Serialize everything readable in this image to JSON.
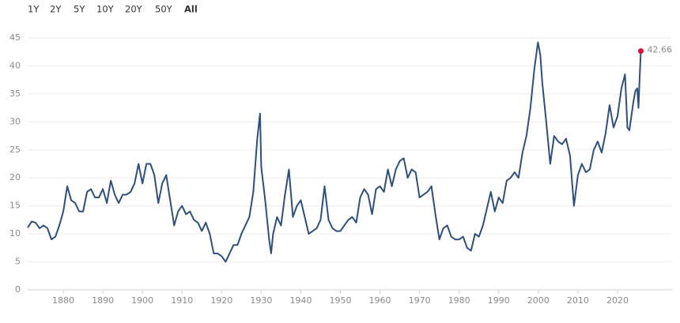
{
  "controls": {
    "ranges": [
      "1Y",
      "2Y",
      "5Y",
      "10Y",
      "20Y",
      "50Y",
      "All"
    ],
    "active": 6
  },
  "chart_data": {
    "type": "line",
    "x": [
      1871,
      1872,
      1873,
      1874,
      1875,
      1876,
      1877,
      1878,
      1879,
      1880,
      1881,
      1882,
      1883,
      1884,
      1885,
      1886,
      1887,
      1888,
      1889,
      1890,
      1891,
      1892,
      1893,
      1894,
      1895,
      1896,
      1897,
      1898,
      1899,
      1900,
      1901,
      1902,
      1903,
      1904,
      1905,
      1906,
      1907,
      1908,
      1909,
      1910,
      1911,
      1912,
      1913,
      1914,
      1915,
      1916,
      1917,
      1918,
      1919,
      1920,
      1921,
      1922,
      1923,
      1924,
      1925,
      1926,
      1927,
      1928,
      1929,
      1929.7,
      1930,
      1931,
      1932,
      1932.5,
      1933,
      1934,
      1935,
      1936,
      1937,
      1938,
      1939,
      1940,
      1941,
      1942,
      1943,
      1944,
      1945,
      1946,
      1947,
      1948,
      1949,
      1950,
      1951,
      1952,
      1953,
      1954,
      1955,
      1956,
      1957,
      1958,
      1959,
      1960,
      1961,
      1962,
      1963,
      1964,
      1965,
      1966,
      1967,
      1968,
      1969,
      1970,
      1971,
      1972,
      1973,
      1974,
      1975,
      1976,
      1977,
      1978,
      1979,
      1980,
      1981,
      1982,
      1983,
      1984,
      1985,
      1986,
      1987,
      1988,
      1989,
      1990,
      1991,
      1992,
      1993,
      1994,
      1995,
      1996,
      1997,
      1998,
      1999,
      1999.9,
      2000.5,
      2001,
      2002,
      2003,
      2004,
      2005,
      2006,
      2007,
      2008,
      2009,
      2010,
      2011,
      2012,
      2013,
      2014,
      2015,
      2016,
      2017,
      2018,
      2019,
      2020,
      2021,
      2021.9,
      2022.5,
      2023,
      2023.6,
      2024,
      2024.5,
      2025,
      2025.3,
      2025.6,
      2025.9
    ],
    "series": [
      {
        "color": "#2e4f7e",
        "values": [
          11.1,
          12.2,
          12.0,
          11.0,
          11.5,
          11.0,
          9.0,
          9.5,
          11.5,
          14.0,
          18.5,
          16.0,
          15.5,
          14.0,
          14.0,
          17.5,
          18.0,
          16.5,
          16.5,
          18.0,
          15.5,
          19.5,
          17.0,
          15.5,
          17.0,
          17.0,
          17.5,
          19.0,
          22.5,
          19.0,
          22.5,
          22.5,
          20.5,
          15.5,
          19.0,
          20.5,
          16.0,
          11.5,
          14.0,
          15.0,
          13.5,
          14.0,
          12.5,
          12.0,
          10.5,
          12.0,
          10.0,
          6.5,
          6.5,
          6.0,
          5.0,
          6.5,
          8.0,
          8.0,
          10.0,
          11.5,
          13.0,
          17.5,
          27.0,
          31.5,
          22.0,
          16.0,
          9.0,
          6.5,
          10.0,
          13.0,
          11.5,
          17.0,
          21.5,
          13.0,
          15.0,
          16.0,
          13.0,
          10.0,
          10.5,
          11.0,
          12.5,
          18.5,
          12.5,
          11.0,
          10.5,
          10.5,
          11.5,
          12.5,
          13.0,
          12.0,
          16.5,
          18.0,
          17.0,
          13.5,
          18.0,
          18.5,
          17.5,
          21.5,
          18.5,
          21.5,
          23.0,
          23.5,
          20.0,
          21.5,
          21.0,
          16.5,
          17.0,
          17.5,
          18.5,
          13.5,
          9.0,
          11.0,
          11.5,
          9.5,
          9.0,
          9.0,
          9.5,
          7.5,
          7.0,
          10.0,
          9.5,
          11.5,
          14.5,
          17.5,
          14.0,
          16.5,
          15.5,
          19.5,
          20.0,
          21.0,
          20.0,
          24.5,
          27.5,
          32.5,
          39.5,
          44.2,
          42.0,
          37.0,
          30.0,
          22.5,
          27.5,
          26.5,
          26.0,
          27.0,
          24.0,
          15.0,
          20.5,
          22.5,
          21.0,
          21.5,
          25.0,
          26.5,
          24.5,
          28.0,
          33.0,
          29.0,
          31.0,
          36.0,
          38.5,
          29.0,
          28.5,
          31.5,
          33.5,
          35.5,
          36.0,
          32.5,
          38.0,
          42.66
        ]
      }
    ],
    "end_marker_color": "#e0103a",
    "xlim": [
      1871,
      2027
    ],
    "xticks": [
      1880,
      1890,
      1900,
      1910,
      1920,
      1930,
      1940,
      1950,
      1960,
      1970,
      1980,
      1990,
      2000,
      2010,
      2020
    ],
    "ylim": [
      0,
      45
    ],
    "yticks": [
      0,
      5,
      10,
      15,
      20,
      25,
      30,
      35,
      40,
      45
    ],
    "grid": true
  }
}
